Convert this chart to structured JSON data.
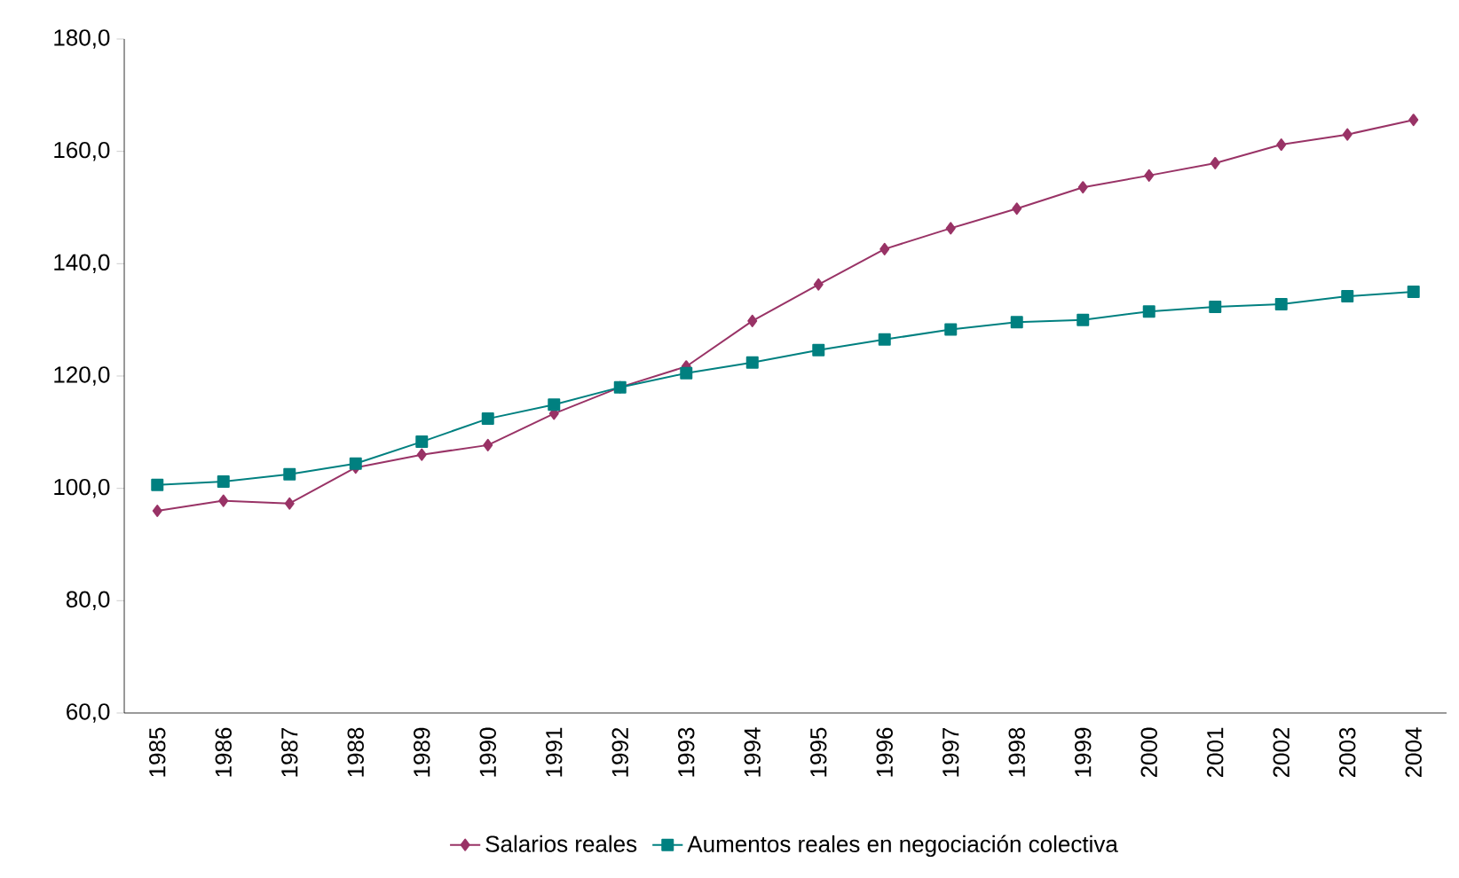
{
  "chart_data": {
    "type": "line",
    "categories": [
      "1985",
      "1986",
      "1987",
      "1988",
      "1989",
      "1990",
      "1991",
      "1992",
      "1993",
      "1994",
      "1995",
      "1996",
      "1997",
      "1998",
      "1999",
      "2000",
      "2001",
      "2002",
      "2003",
      "2004"
    ],
    "series": [
      {
        "name": "Salarios reales",
        "color": "#993366",
        "marker": "diamond",
        "values": [
          96.0,
          97.8,
          97.3,
          103.7,
          106.0,
          107.7,
          113.3,
          118.0,
          121.7,
          129.8,
          136.3,
          142.6,
          146.3,
          149.8,
          153.6,
          155.7,
          157.9,
          161.2,
          163.0,
          165.6
        ]
      },
      {
        "name": "Aumentos reales en negociación colectiva",
        "color": "#008080",
        "marker": "square",
        "values": [
          100.6,
          101.2,
          102.5,
          104.4,
          108.3,
          112.4,
          114.9,
          118.0,
          120.5,
          122.4,
          124.6,
          126.5,
          128.3,
          129.6,
          130.0,
          131.5,
          132.3,
          132.8,
          134.2,
          135.0
        ]
      }
    ],
    "ylim": [
      60,
      180
    ],
    "yticks": [
      {
        "value": 60,
        "label": "60,0"
      },
      {
        "value": 80,
        "label": "80,0"
      },
      {
        "value": 100,
        "label": "100,0"
      },
      {
        "value": 120,
        "label": "120,0"
      },
      {
        "value": 140,
        "label": "140,0"
      },
      {
        "value": 160,
        "label": "160,0"
      },
      {
        "value": 180,
        "label": "180,0"
      }
    ],
    "legend": "bottom",
    "grid": false,
    "line_style": "solid"
  }
}
